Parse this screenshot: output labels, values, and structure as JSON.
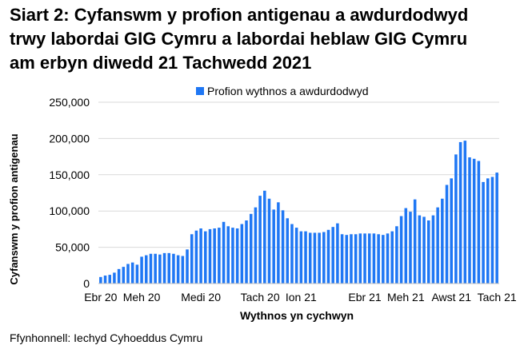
{
  "title_lines": [
    "Siart 2: Cyfanswm y profion antigenau a awdurdodwyd",
    "trwy labordai GIG Cymru a labordai heblaw GIG Cymru",
    "am erbyn diwedd 21 Tachwedd 2021"
  ],
  "source": "Ffynhonnell: Iechyd Cyhoeddus Cymru",
  "colors": {
    "bar": "#1f77f4",
    "grid": "#d9d9d9",
    "axis": "#bfbfbf"
  },
  "chart_data": {
    "type": "bar",
    "title": "Siart 2: Cyfanswm y profion antigenau a awdurdodwyd trwy labordai GIG Cymru a labordai heblaw GIG Cymru am erbyn diwedd 21 Tachwedd 2021",
    "xlabel": "Wythnos yn cychwyn",
    "ylabel": "Cyfanswm y profion antigenau",
    "ylim": [
      0,
      250000
    ],
    "yticks": [
      0,
      50000,
      100000,
      150000,
      200000,
      250000
    ],
    "ytick_labels": [
      "0",
      "50,000",
      "100,000",
      "150,000",
      "200,000",
      "250,000"
    ],
    "grid": true,
    "legend_position": "top",
    "series": [
      {
        "name": "Profion wythnos a awdurdodwyd",
        "values": [
          9000,
          11000,
          12000,
          15000,
          20000,
          23000,
          27000,
          29000,
          26000,
          37000,
          39000,
          41000,
          41000,
          40000,
          42000,
          42000,
          41000,
          39000,
          38000,
          47000,
          68000,
          73000,
          76000,
          72000,
          75000,
          76000,
          77000,
          85000,
          79000,
          77000,
          76000,
          82000,
          87000,
          96000,
          105000,
          121000,
          128000,
          117000,
          102000,
          112000,
          101000,
          90000,
          82000,
          77000,
          72000,
          72000,
          70000,
          70000,
          70000,
          71000,
          74000,
          78000,
          83000,
          68000,
          67000,
          68000,
          68000,
          69000,
          69000,
          69000,
          69000,
          68000,
          67000,
          69000,
          72000,
          79000,
          93000,
          104000,
          99000,
          116000,
          94000,
          92000,
          87000,
          94000,
          105000,
          117000,
          136000,
          145000,
          178000,
          195000,
          197000,
          174000,
          172000,
          169000,
          140000,
          145000,
          147000,
          153000
        ]
      }
    ],
    "x_tick_labels": [
      {
        "label": "Ebr 20",
        "index": 0
      },
      {
        "label": "Meh 20",
        "index": 9
      },
      {
        "label": "Medi 20",
        "index": 22
      },
      {
        "label": "Tach 20",
        "index": 35
      },
      {
        "label": "Ion 21",
        "index": 44
      },
      {
        "label": "Ebr 21",
        "index": 58
      },
      {
        "label": "Meh 21",
        "index": 67
      },
      {
        "label": "Awst 21",
        "index": 77
      },
      {
        "label": "Tach 21",
        "index": 87
      }
    ]
  }
}
